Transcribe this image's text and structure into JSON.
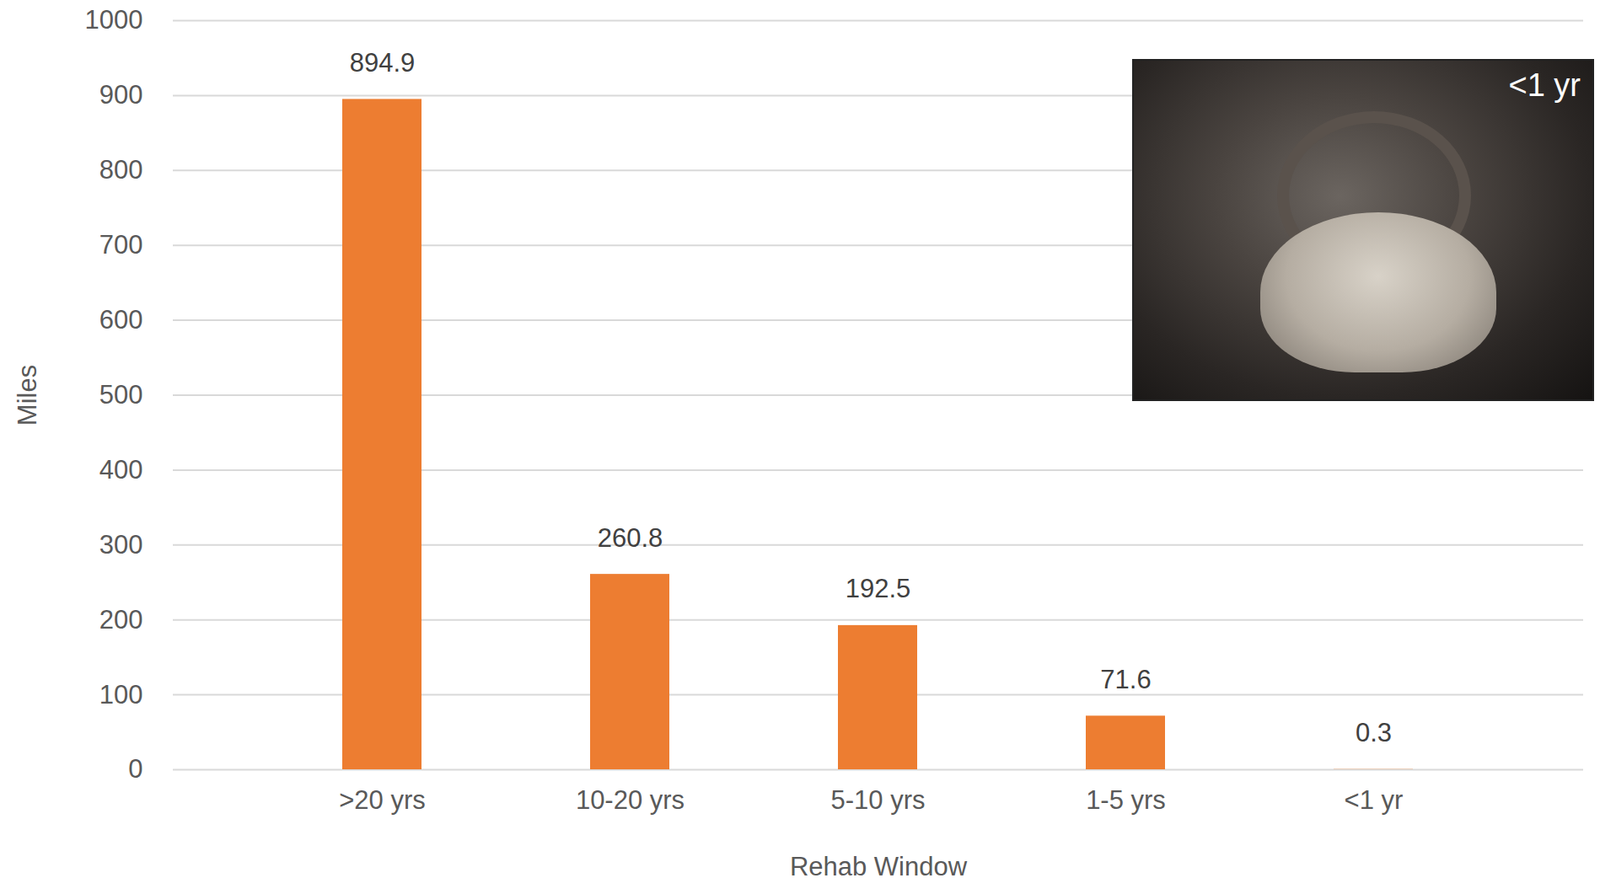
{
  "chart_data": {
    "type": "bar",
    "categories": [
      ">20 yrs",
      "10-20 yrs",
      "5-10 yrs",
      "1-5 yrs",
      "<1 yr"
    ],
    "values": [
      894.9,
      260.8,
      192.5,
      71.6,
      0.3
    ],
    "color": "#ed7d31",
    "x_label": "Rehab Window",
    "y_label": "Miles",
    "ylim": [
      0,
      1000
    ],
    "yticks": [
      0,
      100,
      200,
      300,
      400,
      500,
      600,
      700,
      800,
      900,
      1000
    ],
    "grid": true,
    "data_labels": true,
    "annotations": [
      "<1 yr"
    ]
  }
}
